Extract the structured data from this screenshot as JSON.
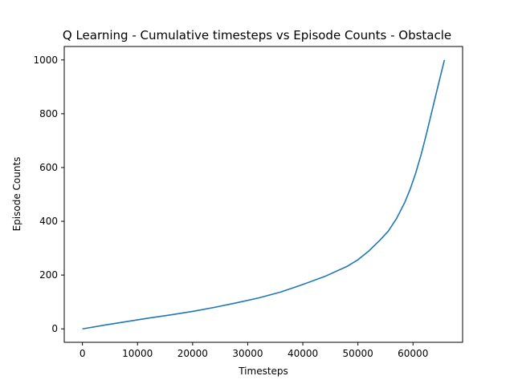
{
  "chart_data": {
    "type": "line",
    "title": "Q Learning - Cumulative timesteps vs Episode Counts - Obstacle",
    "xlabel": "Timesteps",
    "ylabel": "Episode Counts",
    "xlim": [
      -3300,
      69000
    ],
    "ylim": [
      -50,
      1050
    ],
    "xticks": [
      0,
      10000,
      20000,
      30000,
      40000,
      50000,
      60000
    ],
    "xtick_labels": [
      "0",
      "10000",
      "20000",
      "30000",
      "40000",
      "50000",
      "60000"
    ],
    "yticks": [
      0,
      200,
      400,
      600,
      800,
      1000
    ],
    "ytick_labels": [
      "0",
      "200",
      "400",
      "600",
      "800",
      "1000"
    ],
    "grid": false,
    "legend": "none",
    "series": [
      {
        "color": "#1f77b4",
        "x": [
          0,
          4000,
          8000,
          12000,
          16000,
          20000,
          24000,
          28000,
          32000,
          36000,
          40000,
          44000,
          48000,
          50000,
          52000,
          54000,
          55500,
          57000,
          58500,
          59500,
          60500,
          61500,
          62500,
          63500,
          64500,
          65700
        ],
        "y": [
          0,
          14,
          27,
          40,
          52,
          65,
          80,
          97,
          115,
          137,
          165,
          195,
          232,
          257,
          290,
          330,
          363,
          410,
          470,
          520,
          580,
          650,
          730,
          815,
          900,
          1000
        ]
      }
    ]
  }
}
